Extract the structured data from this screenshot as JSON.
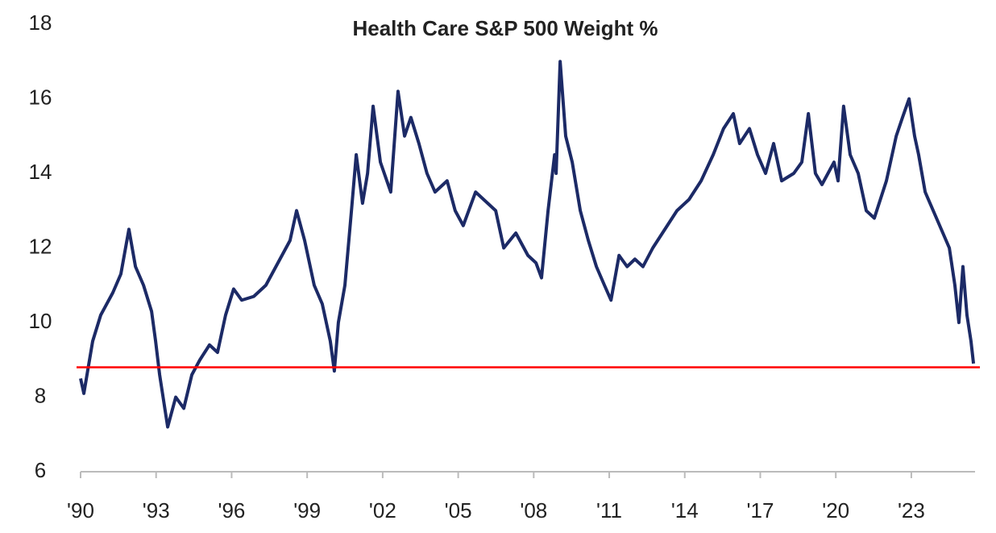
{
  "chart_data": {
    "type": "line",
    "title": "Health Care S&P 500 Weight %",
    "xlim": [
      1990,
      2025.5
    ],
    "ylim": [
      6,
      18
    ],
    "yticks": [
      6,
      8,
      10,
      12,
      14,
      16,
      18
    ],
    "xticks": [
      {
        "value": 1990,
        "label": "'90"
      },
      {
        "value": 1993,
        "label": "'93"
      },
      {
        "value": 1996,
        "label": "'96"
      },
      {
        "value": 1999,
        "label": "'99"
      },
      {
        "value": 2002,
        "label": "'02"
      },
      {
        "value": 2005,
        "label": "'05"
      },
      {
        "value": 2008,
        "label": "'08"
      },
      {
        "value": 2011,
        "label": "'11"
      },
      {
        "value": 2014,
        "label": "'14"
      },
      {
        "value": 2017,
        "label": "'17"
      },
      {
        "value": 2020,
        "label": "'20"
      },
      {
        "value": 2023,
        "label": "'23"
      }
    ],
    "grid": false,
    "reference_line": {
      "value": 8.8,
      "color": "#ff0000"
    },
    "x": [
      1990.0,
      1990.13,
      1990.48,
      1990.8,
      1991.28,
      1991.6,
      1991.92,
      1992.18,
      1992.5,
      1992.82,
      1992.98,
      1993.14,
      1993.3,
      1993.46,
      1993.78,
      1994.1,
      1994.42,
      1994.74,
      1995.12,
      1995.44,
      1995.76,
      1996.08,
      1996.4,
      1996.88,
      1997.36,
      1997.84,
      1998.32,
      1998.58,
      1998.9,
      1999.28,
      1999.6,
      1999.92,
      2000.08,
      2000.24,
      2000.5,
      2000.76,
      2000.95,
      2001.2,
      2001.4,
      2001.62,
      2001.91,
      2002.32,
      2002.61,
      2002.87,
      2003.12,
      2003.44,
      2003.76,
      2004.08,
      2004.56,
      2004.88,
      2005.2,
      2005.69,
      2006.17,
      2006.49,
      2006.81,
      2007.29,
      2007.77,
      2008.09,
      2008.31,
      2008.57,
      2008.83,
      2008.89,
      2009.05,
      2009.27,
      2009.53,
      2009.85,
      2010.17,
      2010.49,
      2010.81,
      2011.07,
      2011.39,
      2011.71,
      2012.02,
      2012.34,
      2012.73,
      2013.21,
      2013.69,
      2014.17,
      2014.65,
      2015.13,
      2015.54,
      2015.93,
      2016.18,
      2016.57,
      2016.89,
      2017.21,
      2017.53,
      2017.85,
      2018.33,
      2018.65,
      2018.91,
      2019.19,
      2019.45,
      2019.93,
      2020.09,
      2020.31,
      2020.57,
      2020.89,
      2021.21,
      2021.53,
      2022.01,
      2022.4,
      2022.65,
      2022.91,
      2023.13,
      2023.29,
      2023.55,
      2023.87,
      2024.19,
      2024.51,
      2024.73,
      2024.89,
      2025.05,
      2025.21,
      2025.37,
      2025.47
    ],
    "series": [
      {
        "name": "Health Care S&P 500 Weight",
        "color": "#1c2a66",
        "values": [
          8.5,
          8.1,
          9.5,
          10.2,
          10.8,
          11.3,
          12.5,
          11.5,
          11.0,
          10.3,
          9.5,
          8.6,
          7.9,
          7.2,
          8.0,
          7.7,
          8.6,
          9.0,
          9.4,
          9.2,
          10.2,
          10.9,
          10.6,
          10.7,
          11.0,
          11.6,
          12.2,
          13.0,
          12.2,
          11.0,
          10.5,
          9.5,
          8.7,
          10.0,
          11.0,
          13.0,
          14.5,
          13.2,
          14.0,
          15.8,
          14.3,
          13.5,
          16.2,
          15.0,
          15.5,
          14.8,
          14.0,
          13.5,
          13.8,
          13.0,
          12.6,
          13.5,
          13.2,
          13.0,
          12.0,
          12.4,
          11.8,
          11.6,
          11.2,
          13.0,
          14.5,
          14.0,
          17.0,
          15.0,
          14.3,
          13.0,
          12.2,
          11.5,
          11.0,
          10.6,
          11.8,
          11.5,
          11.7,
          11.5,
          12.0,
          12.5,
          13.0,
          13.3,
          13.8,
          14.5,
          15.2,
          15.6,
          14.8,
          15.2,
          14.5,
          14.0,
          14.8,
          13.8,
          14.0,
          14.3,
          15.6,
          14.0,
          13.7,
          14.3,
          13.8,
          15.8,
          14.5,
          14.0,
          13.0,
          12.8,
          13.8,
          15.0,
          15.5,
          16.0,
          15.0,
          14.5,
          13.5,
          13.0,
          12.5,
          12.0,
          11.0,
          10.0,
          11.5,
          10.2,
          9.5,
          8.9
        ]
      }
    ]
  }
}
